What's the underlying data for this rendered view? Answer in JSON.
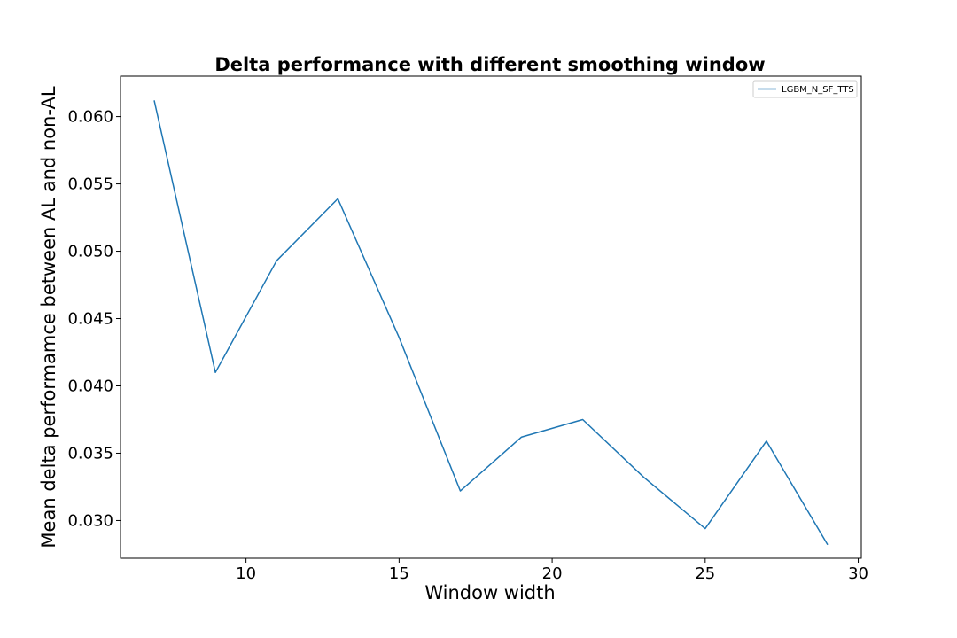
{
  "chart_data": {
    "type": "line",
    "title": "Delta performance with different smoothing window",
    "xlabel": "Window width",
    "ylabel": "Mean delta performamce between AL and non-AL",
    "xlim": [
      5.9,
      30.1
    ],
    "ylim": [
      0.0272,
      0.063
    ],
    "xticks": [
      10,
      15,
      20,
      25,
      30
    ],
    "yticks": [
      0.03,
      0.035,
      0.04,
      0.045,
      0.05,
      0.055,
      0.06
    ],
    "ytick_labels": [
      "0.030",
      "0.035",
      "0.040",
      "0.045",
      "0.050",
      "0.055",
      "0.060"
    ],
    "grid": false,
    "legend_position": "top-right",
    "series": [
      {
        "name": "LGBM_N_SF_TTS",
        "color": "#1f77b4",
        "x": [
          7,
          9,
          11,
          13,
          15,
          17,
          19,
          21,
          23,
          25,
          27,
          29
        ],
        "y": [
          0.0612,
          0.041,
          0.0493,
          0.0539,
          0.0436,
          0.0322,
          0.0362,
          0.0375,
          0.0332,
          0.0294,
          0.0359,
          0.0282
        ]
      }
    ]
  }
}
